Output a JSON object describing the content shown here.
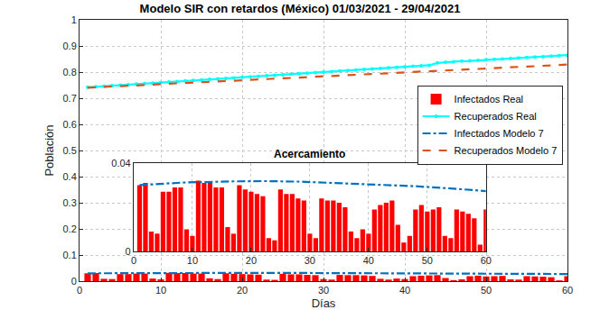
{
  "chart_data": [
    {
      "type": "combo",
      "title": "Modelo SIR con retardos (México) 01/03/2021 - 29/04/2021",
      "x_label": "Días",
      "y_label": "Población",
      "xlim": [
        0,
        60
      ],
      "xticks": [
        0,
        10,
        20,
        30,
        40,
        50,
        60
      ],
      "ylim": [
        0,
        1
      ],
      "yticks": [
        0,
        0.1,
        0.2,
        0.3,
        0.4,
        0.5,
        0.6,
        0.7,
        0.8,
        0.9,
        1
      ],
      "grid": true,
      "legend": "northeast",
      "x": [
        1,
        2,
        3,
        4,
        5,
        6,
        7,
        8,
        9,
        10,
        11,
        12,
        13,
        14,
        15,
        16,
        17,
        18,
        19,
        20,
        21,
        22,
        23,
        24,
        25,
        26,
        27,
        28,
        29,
        30,
        31,
        32,
        33,
        34,
        35,
        36,
        37,
        38,
        39,
        40,
        41,
        42,
        43,
        44,
        45,
        46,
        47,
        48,
        49,
        50,
        51,
        52,
        53,
        54,
        55,
        56,
        57,
        58,
        59,
        60
      ],
      "series": [
        {
          "name": "Infectados Real",
          "type": "bar",
          "color": "#ff0000",
          "values": [
            0.03,
            0.031,
            0.009,
            0.008,
            0.027,
            0.027,
            0.029,
            0.029,
            0.01,
            0.007,
            0.032,
            0.031,
            0.031,
            0.029,
            0.029,
            0.011,
            0.008,
            0.03,
            0.028,
            0.027,
            0.026,
            0.025,
            0.006,
            0.005,
            0.028,
            0.026,
            0.026,
            0.024,
            0.023,
            0.008,
            0.006,
            0.024,
            0.023,
            0.023,
            0.022,
            0.02,
            0.009,
            0.006,
            0.01,
            0.008,
            0.019,
            0.021,
            0.022,
            0.023,
            0.012,
            0.004,
            0.007,
            0.019,
            0.021,
            0.018,
            0.019,
            0.02,
            0.007,
            0.006,
            0.019,
            0.018,
            0.017,
            0.015,
            0.003,
            0.019
          ]
        },
        {
          "name": "Recuperados Real",
          "type": "line",
          "color": "#00ffff",
          "marker": "circle",
          "line_style": "solid",
          "values": [
            0.742,
            0.744,
            0.746,
            0.748,
            0.75,
            0.752,
            0.754,
            0.756,
            0.758,
            0.76,
            0.762,
            0.764,
            0.766,
            0.768,
            0.77,
            0.772,
            0.774,
            0.776,
            0.778,
            0.78,
            0.782,
            0.784,
            0.786,
            0.788,
            0.79,
            0.792,
            0.794,
            0.796,
            0.798,
            0.8,
            0.802,
            0.804,
            0.806,
            0.808,
            0.81,
            0.812,
            0.814,
            0.816,
            0.818,
            0.82,
            0.822,
            0.824,
            0.826,
            0.835,
            0.838,
            0.84,
            0.842,
            0.843,
            0.845,
            0.847,
            0.849,
            0.85,
            0.852,
            0.854,
            0.856,
            0.858,
            0.859,
            0.861,
            0.863,
            0.865
          ]
        },
        {
          "name": "Infectados Modelo 7",
          "type": "line",
          "color": "#0072bd",
          "line_style": "dashdot",
          "values": [
            0.03,
            0.0302,
            0.0304,
            0.0306,
            0.0307,
            0.0309,
            0.031,
            0.0311,
            0.0312,
            0.0313,
            0.0314,
            0.0315,
            0.0315,
            0.0316,
            0.0316,
            0.0317,
            0.0317,
            0.0317,
            0.0318,
            0.0318,
            0.0318,
            0.0318,
            0.0318,
            0.0317,
            0.0317,
            0.0317,
            0.0316,
            0.0316,
            0.0315,
            0.0315,
            0.0314,
            0.0313,
            0.0313,
            0.0312,
            0.0311,
            0.031,
            0.0309,
            0.0308,
            0.0307,
            0.0306,
            0.0305,
            0.0303,
            0.0302,
            0.0301,
            0.0299,
            0.0298,
            0.0296,
            0.0295,
            0.0293,
            0.0292,
            0.029,
            0.0288,
            0.0287,
            0.0285,
            0.0283,
            0.0281,
            0.0279,
            0.0277,
            0.0275,
            0.0273
          ]
        },
        {
          "name": "Recuperados Modelo 7",
          "type": "line",
          "color": "#d95319",
          "line_style": "dash",
          "values": [
            0.74,
            0.742,
            0.743,
            0.745,
            0.746,
            0.748,
            0.749,
            0.751,
            0.752,
            0.754,
            0.755,
            0.757,
            0.758,
            0.76,
            0.761,
            0.763,
            0.764,
            0.766,
            0.767,
            0.769,
            0.77,
            0.772,
            0.773,
            0.775,
            0.776,
            0.778,
            0.779,
            0.781,
            0.782,
            0.784,
            0.785,
            0.787,
            0.788,
            0.79,
            0.791,
            0.793,
            0.794,
            0.796,
            0.797,
            0.799,
            0.8,
            0.802,
            0.803,
            0.805,
            0.806,
            0.808,
            0.809,
            0.811,
            0.812,
            0.814,
            0.815,
            0.817,
            0.818,
            0.82,
            0.821,
            0.823,
            0.824,
            0.826,
            0.827,
            0.829
          ]
        }
      ]
    },
    {
      "type": "combo",
      "title": "Acercamiento",
      "xlim": [
        0,
        60
      ],
      "xticks": [
        0,
        10,
        20,
        30,
        40,
        50,
        60
      ],
      "ylim": [
        0,
        0.04
      ],
      "yticks": [
        0,
        0.04
      ],
      "grid": true,
      "x": [
        1,
        2,
        3,
        4,
        5,
        6,
        7,
        8,
        9,
        10,
        11,
        12,
        13,
        14,
        15,
        16,
        17,
        18,
        19,
        20,
        21,
        22,
        23,
        24,
        25,
        26,
        27,
        28,
        29,
        30,
        31,
        32,
        33,
        34,
        35,
        36,
        37,
        38,
        39,
        40,
        41,
        42,
        43,
        44,
        45,
        46,
        47,
        48,
        49,
        50,
        51,
        52,
        53,
        54,
        55,
        56,
        57,
        58,
        59,
        60
      ],
      "series": [
        {
          "name": "Infectados Real",
          "type": "bar",
          "color": "#ff0000",
          "values": [
            0.03,
            0.031,
            0.009,
            0.008,
            0.027,
            0.027,
            0.029,
            0.029,
            0.01,
            0.007,
            0.032,
            0.031,
            0.031,
            0.029,
            0.029,
            0.011,
            0.008,
            0.03,
            0.028,
            0.027,
            0.026,
            0.025,
            0.006,
            0.005,
            0.028,
            0.026,
            0.026,
            0.024,
            0.023,
            0.008,
            0.006,
            0.024,
            0.023,
            0.023,
            0.022,
            0.02,
            0.009,
            0.006,
            0.01,
            0.008,
            0.019,
            0.021,
            0.022,
            0.023,
            0.012,
            0.004,
            0.007,
            0.019,
            0.021,
            0.018,
            0.019,
            0.02,
            0.007,
            0.006,
            0.019,
            0.018,
            0.017,
            0.015,
            0.003,
            0.019
          ]
        },
        {
          "name": "Infectados Modelo 7",
          "type": "line",
          "color": "#0072bd",
          "line_style": "dashdot",
          "values": [
            0.03,
            0.0302,
            0.0304,
            0.0306,
            0.0307,
            0.0309,
            0.031,
            0.0311,
            0.0312,
            0.0313,
            0.0314,
            0.0315,
            0.0315,
            0.0316,
            0.0316,
            0.0317,
            0.0317,
            0.0317,
            0.0318,
            0.0318,
            0.0318,
            0.0318,
            0.0318,
            0.0317,
            0.0317,
            0.0317,
            0.0316,
            0.0316,
            0.0315,
            0.0315,
            0.0314,
            0.0313,
            0.0313,
            0.0312,
            0.0311,
            0.031,
            0.0309,
            0.0308,
            0.0307,
            0.0306,
            0.0305,
            0.0303,
            0.0302,
            0.0301,
            0.0299,
            0.0298,
            0.0296,
            0.0295,
            0.0293,
            0.0292,
            0.029,
            0.0288,
            0.0287,
            0.0285,
            0.0283,
            0.0281,
            0.0279,
            0.0277,
            0.0275,
            0.0273
          ]
        }
      ]
    }
  ]
}
